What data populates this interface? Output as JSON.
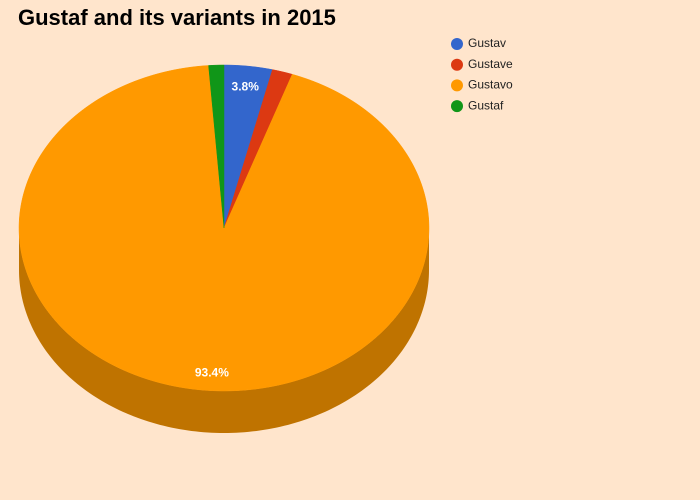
{
  "chart_data": {
    "type": "pie",
    "title": "Gustaf and its variants in 2015",
    "categories": [
      "Gustav",
      "Gustave",
      "Gustavo",
      "Gustaf"
    ],
    "values": [
      3.8,
      1.6,
      93.4,
      1.2
    ],
    "value_labels": [
      "3.8%",
      null,
      "93.4%",
      null
    ],
    "colors": [
      "#3366cc",
      "#dc3912",
      "#ff9900",
      "#109618"
    ],
    "side_colors": [
      "#264d99",
      "#a52b0e",
      "#bf7300",
      "#0c7112"
    ],
    "legend": "right"
  }
}
